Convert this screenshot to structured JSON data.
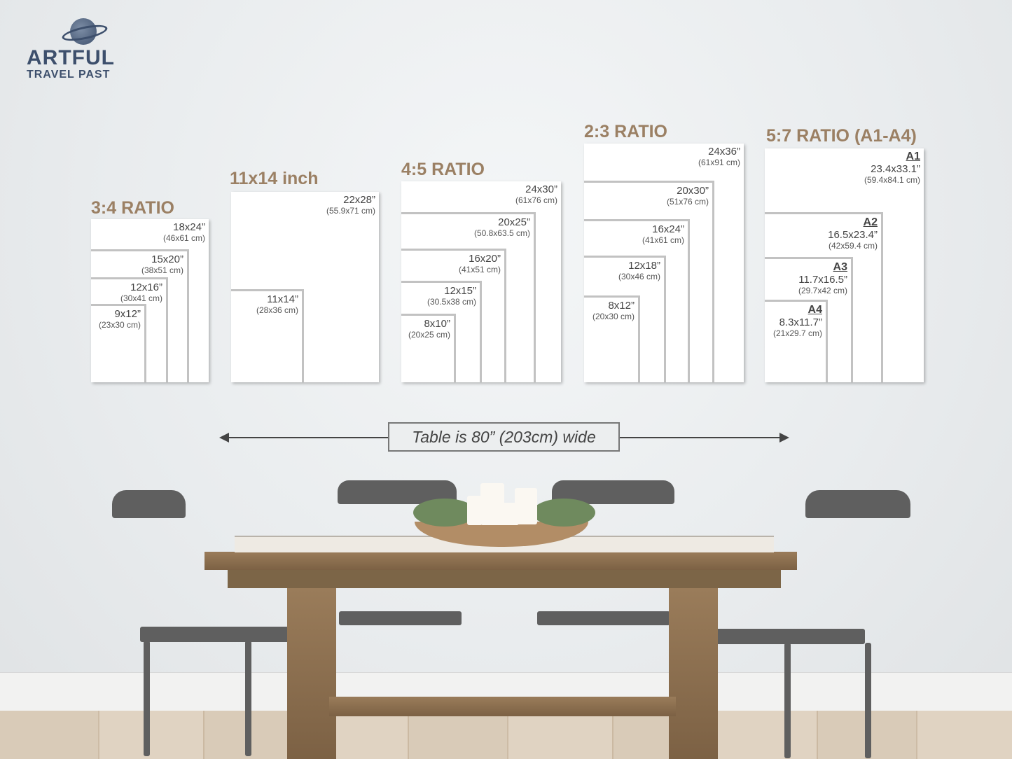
{
  "brand": {
    "name_line1": "ARTFUL",
    "name_line2": "TRAVEL PAST",
    "logo_icon": "globe-icon",
    "color": "#3d4f6c"
  },
  "accent_color": "#9b8064",
  "groups": [
    {
      "title": "3:4 RATIO",
      "sizes": [
        {
          "inch": "18x24”",
          "cm": "(46x61 cm)"
        },
        {
          "inch": "15x20”",
          "cm": "(38x51 cm)"
        },
        {
          "inch": "12x16”",
          "cm": "(30x41 cm)"
        },
        {
          "inch": "9x12”",
          "cm": "(23x30 cm)"
        }
      ]
    },
    {
      "title": "11x14 inch",
      "sizes": [
        {
          "inch": "22x28”",
          "cm": "(55.9x71 cm)"
        },
        {
          "inch": "11x14”",
          "cm": "(28x36 cm)"
        }
      ]
    },
    {
      "title": "4:5 RATIO",
      "sizes": [
        {
          "inch": "24x30”",
          "cm": "(61x76 cm)"
        },
        {
          "inch": "20x25”",
          "cm": "(50.8x63.5 cm)"
        },
        {
          "inch": "16x20”",
          "cm": "(41x51 cm)"
        },
        {
          "inch": "12x15”",
          "cm": "(30.5x38 cm)"
        },
        {
          "inch": "8x10”",
          "cm": "(20x25 cm)"
        }
      ]
    },
    {
      "title": "2:3 RATIO",
      "sizes": [
        {
          "inch": "24x36”",
          "cm": "(61x91 cm)"
        },
        {
          "inch": "20x30”",
          "cm": "(51x76 cm)"
        },
        {
          "inch": "16x24”",
          "cm": "(41x61 cm)"
        },
        {
          "inch": "12x18”",
          "cm": "(30x46 cm)"
        },
        {
          "inch": "8x12”",
          "cm": "(20x30 cm)"
        }
      ]
    },
    {
      "title": "5:7 RATIO (A1-A4)",
      "sizes": [
        {
          "name": "A1",
          "inch": "23.4x33.1”",
          "cm": "(59.4x84.1 cm)"
        },
        {
          "name": "A2",
          "inch": "16.5x23.4”",
          "cm": "(42x59.4 cm)"
        },
        {
          "name": "A3",
          "inch": "11.7x16.5”",
          "cm": "(29.7x42 cm)"
        },
        {
          "name": "A4",
          "inch": "8.3x11.7”",
          "cm": "(21x29.7 cm)"
        }
      ]
    }
  ],
  "measurement": {
    "label": "Table is 80” (203cm) wide"
  }
}
